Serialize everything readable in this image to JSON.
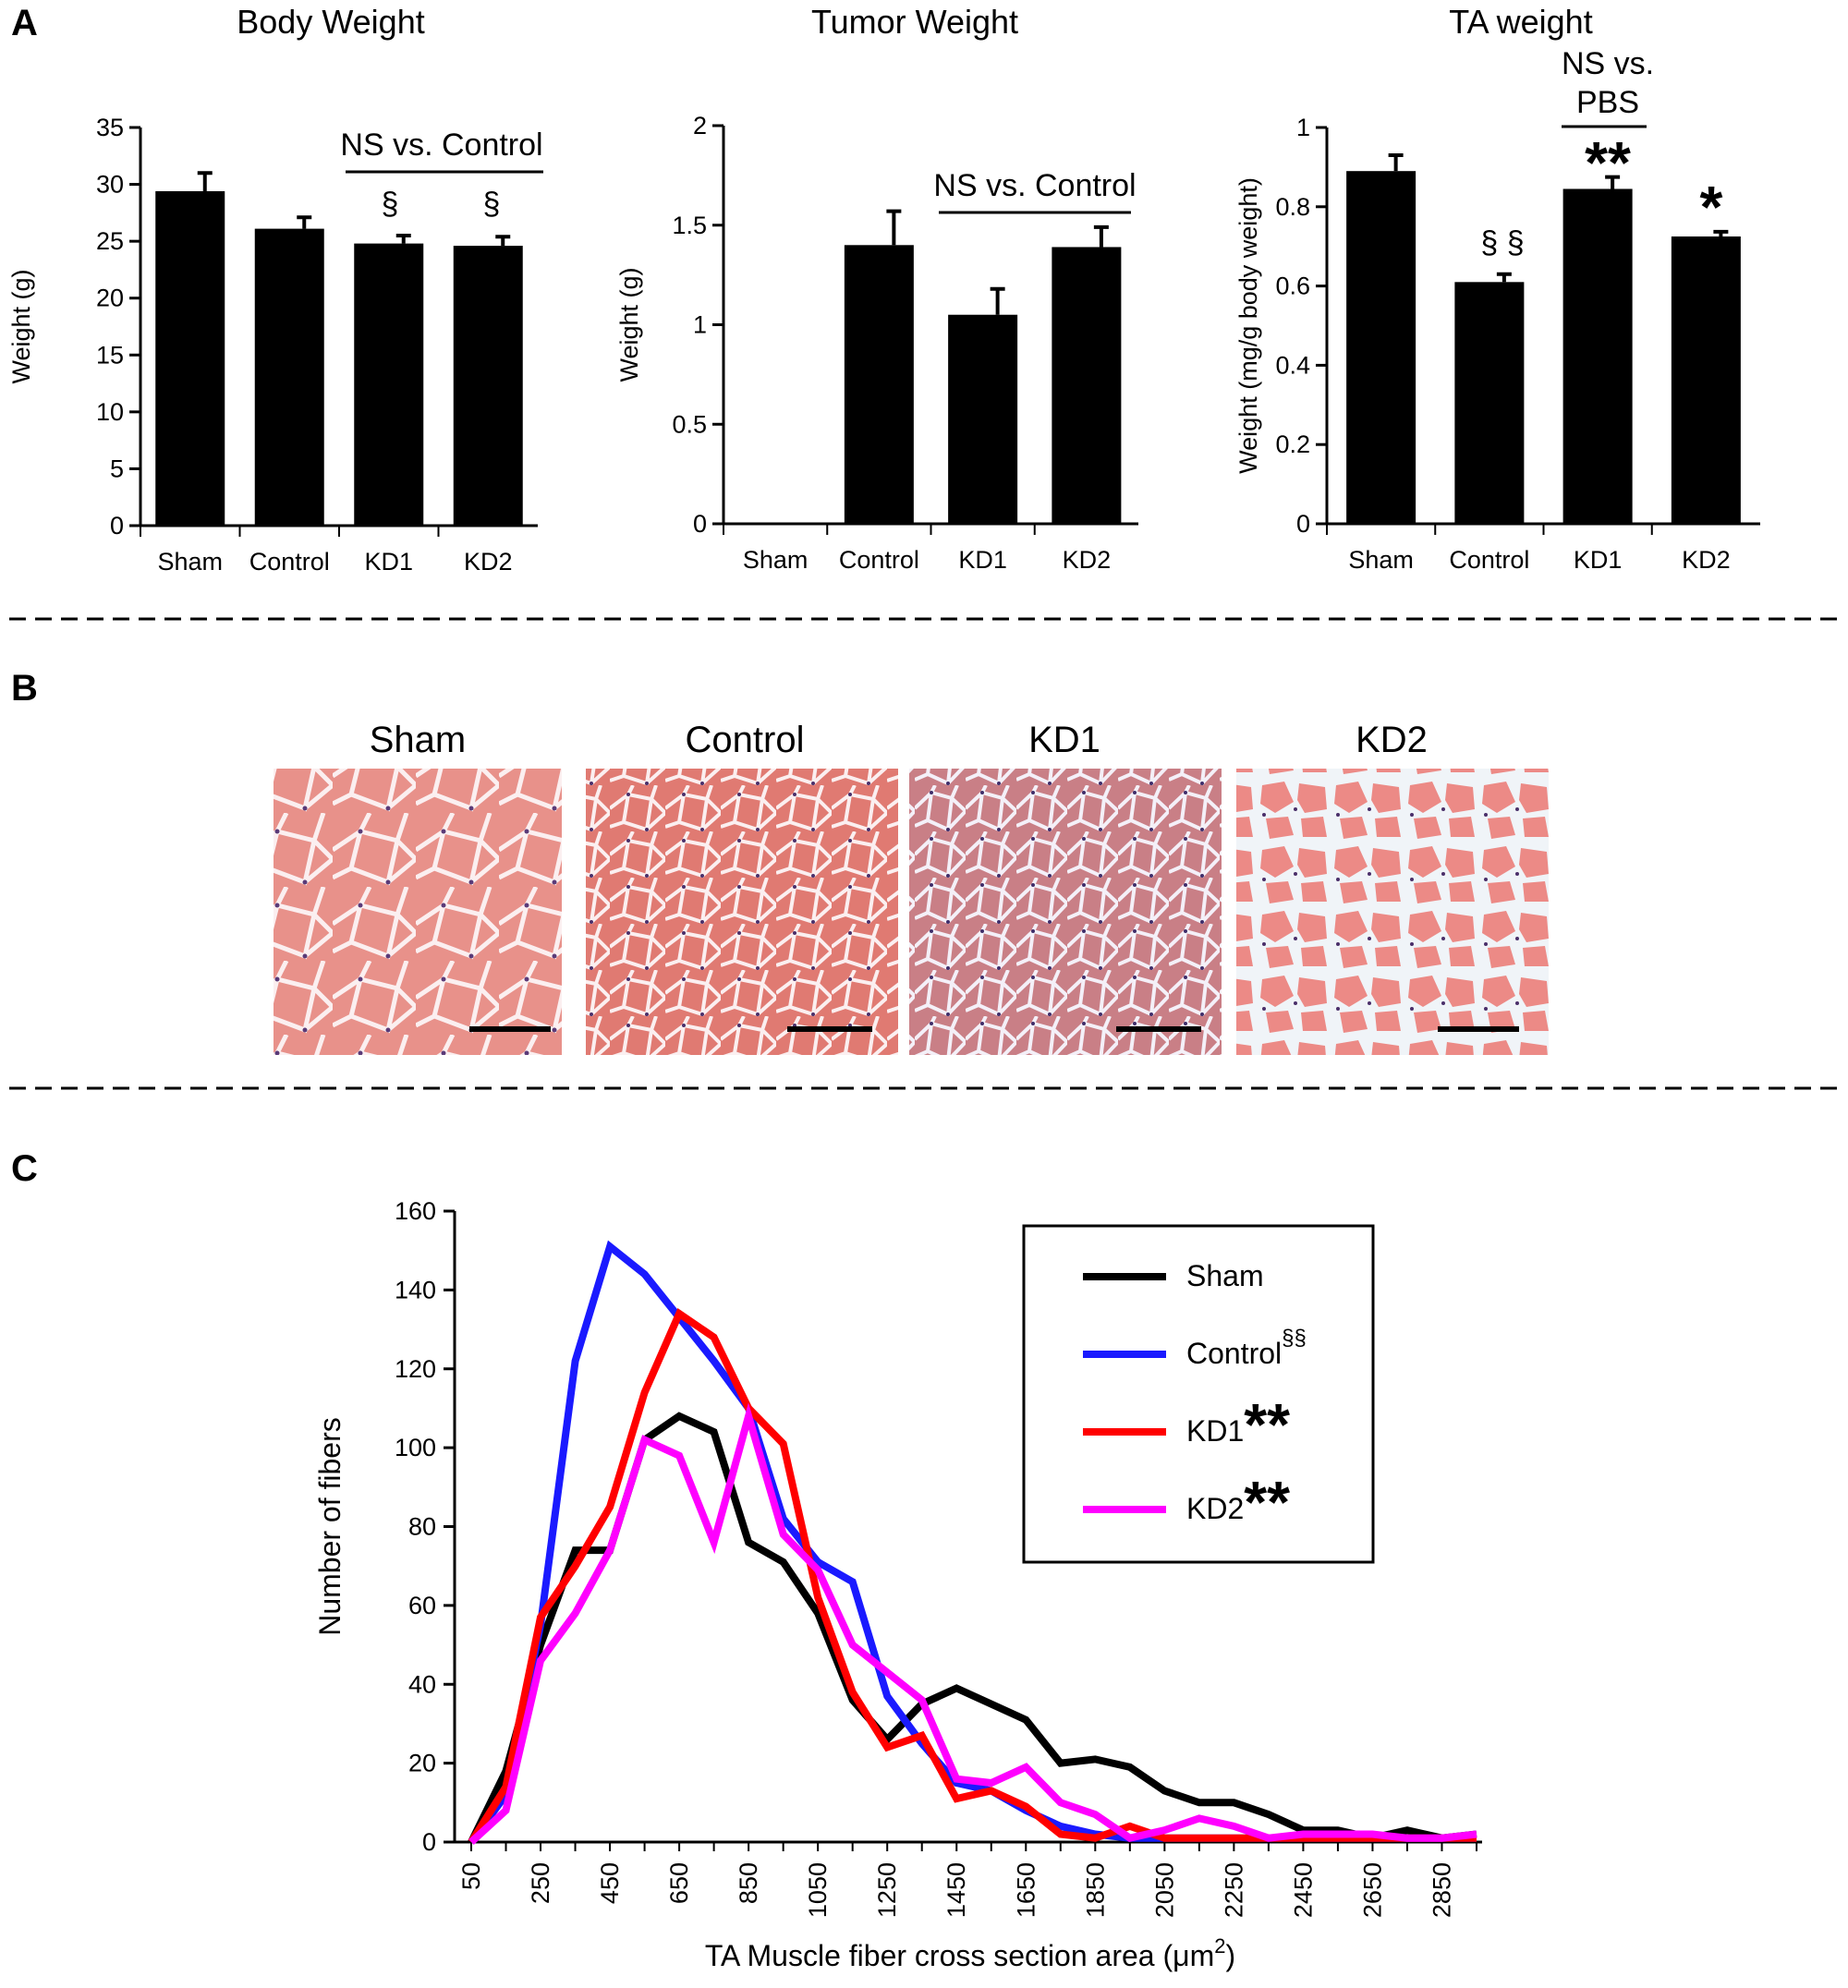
{
  "panels": {
    "a": "A",
    "b": "B",
    "c": "C"
  },
  "colors": {
    "bar": "#000000",
    "sham": "#000000",
    "control": "#1a1aff",
    "kd1": "#ff0000",
    "kd2": "#ff00ff"
  },
  "annotations": {
    "body_ns": "NS vs. Control",
    "tumor_ns": "NS vs. Control",
    "ta_ns_line1": "NS vs.",
    "ta_ns_line2": "PBS",
    "section": "§",
    "double_section": "§ §",
    "double_star": "**",
    "single_star": "*"
  },
  "histology": {
    "labels": [
      "Sham",
      "Control",
      "KD1",
      "KD2"
    ],
    "scale_bar": "scale-bar"
  },
  "chart_data": [
    {
      "type": "bar",
      "title": "Body Weight",
      "ylabel": "Weight (g)",
      "categories": [
        "Sham",
        "Control",
        "KD1",
        "KD2"
      ],
      "values": [
        29.4,
        26.1,
        24.8,
        24.6
      ],
      "errors": [
        1.6,
        1.0,
        0.7,
        0.8
      ],
      "ylim": [
        0,
        35
      ],
      "yticks": [
        0,
        5,
        10,
        15,
        20,
        25,
        30,
        35
      ]
    },
    {
      "type": "bar",
      "title": "Tumor Weight",
      "ylabel": "Weight (g)",
      "categories": [
        "Sham",
        "Control",
        "KD1",
        "KD2"
      ],
      "values": [
        0,
        1.4,
        1.05,
        1.39
      ],
      "errors": [
        0,
        0.17,
        0.13,
        0.1
      ],
      "ylim": [
        0,
        2
      ],
      "yticks": [
        "0",
        "0.5",
        "1",
        "1.5",
        "2"
      ]
    },
    {
      "type": "bar",
      "title": "TA weight",
      "ylabel": "Weight (mg/g body weight)",
      "categories": [
        "Sham",
        "Control",
        "KD1",
        "KD2"
      ],
      "values": [
        0.89,
        0.61,
        0.845,
        0.725
      ],
      "errors": [
        0.04,
        0.02,
        0.03,
        0.012
      ],
      "ylim": [
        0,
        1
      ],
      "yticks": [
        "0",
        "0.2",
        "0.4",
        "0.6",
        "0.8",
        "1"
      ]
    },
    {
      "type": "line",
      "xlabel_main": "TA Muscle fiber cross section area (μm",
      "xlabel_sup": "2",
      "xlabel_end": ")",
      "ylabel": "Number of fibers",
      "x": [
        50,
        150,
        250,
        350,
        450,
        550,
        650,
        750,
        850,
        950,
        1050,
        1150,
        1250,
        1350,
        1450,
        1550,
        1650,
        1750,
        1850,
        1950,
        2050,
        2150,
        2250,
        2350,
        2450,
        2550,
        2650,
        2750,
        2850,
        2950
      ],
      "xticks": [
        "50",
        "250",
        "450",
        "650",
        "850",
        "1050",
        "1250",
        "1450",
        "1650",
        "1850",
        "2050",
        "2250",
        "2450",
        "2650",
        "2850"
      ],
      "ylim": [
        0,
        160
      ],
      "yticks": [
        0,
        20,
        40,
        60,
        80,
        100,
        120,
        140,
        160
      ],
      "legend_position": "top-right",
      "series": [
        {
          "name": "Sham",
          "marker": "",
          "values": [
            0,
            18,
            50,
            74,
            74,
            102,
            108,
            104,
            76,
            71,
            58,
            36,
            26,
            35,
            39,
            35,
            31,
            20,
            21,
            19,
            13,
            10,
            10,
            7,
            3,
            3,
            1,
            3,
            1,
            2
          ]
        },
        {
          "name": "Control",
          "marker": "§§",
          "values": [
            0,
            12,
            55,
            122,
            151,
            144,
            133,
            122,
            110,
            82,
            71,
            66,
            37,
            25,
            15,
            13,
            8,
            4,
            2,
            1,
            1,
            1,
            1,
            1,
            1,
            1,
            1,
            1,
            1,
            1
          ]
        },
        {
          "name": "KD1",
          "marker": "**",
          "values": [
            0,
            14,
            57,
            70,
            85,
            114,
            134,
            128,
            110,
            101,
            62,
            38,
            24,
            27,
            11,
            13,
            9,
            2,
            1,
            4,
            1,
            1,
            1,
            1,
            1,
            1,
            1,
            1,
            1,
            1
          ]
        },
        {
          "name": "KD2",
          "marker": "**",
          "values": [
            0,
            8,
            46,
            58,
            74,
            102,
            98,
            76,
            108,
            78,
            69,
            50,
            43,
            36,
            16,
            15,
            19,
            10,
            7,
            1,
            3,
            6,
            4,
            1,
            2,
            2,
            2,
            1,
            1,
            2
          ]
        }
      ]
    }
  ]
}
